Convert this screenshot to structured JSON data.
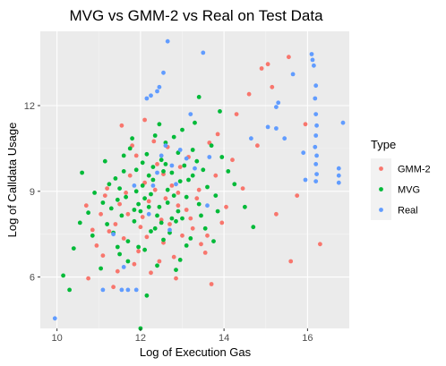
{
  "chart_data": {
    "type": "scatter",
    "title": "MVG vs GMM-2 vs Real on Test Data",
    "xlabel": "Log of Execution Gas",
    "ylabel": "Log of Calldata Usage",
    "xlim": [
      9.6,
      17.0
    ],
    "ylim": [
      4.2,
      14.6
    ],
    "x_ticks": [
      10,
      12,
      14,
      16
    ],
    "y_ticks": [
      6,
      9,
      12
    ],
    "grid": true,
    "background": "#ebebeb",
    "legend": {
      "title": "Type",
      "placement": "right"
    },
    "series": [
      {
        "name": "GMM-2",
        "color": "#f8766d",
        "points": [
          [
            11.55,
            11.3
          ],
          [
            12.32,
            10.75
          ],
          [
            11.7,
            8.2
          ],
          [
            12.9,
            8.95
          ],
          [
            11.25,
            7.6
          ],
          [
            13.35,
            8.75
          ],
          [
            12.1,
            9.3
          ],
          [
            11.05,
            8.2
          ],
          [
            10.85,
            7.65
          ],
          [
            13.65,
            10.7
          ],
          [
            12.55,
            7.2
          ],
          [
            11.95,
            6.9
          ],
          [
            13.25,
            7.7
          ],
          [
            12.75,
            9.2
          ],
          [
            11.45,
            6.2
          ],
          [
            14.05,
            8.45
          ],
          [
            11.9,
            10.25
          ],
          [
            12.5,
            8.0
          ],
          [
            13.0,
            7.45
          ],
          [
            12.2,
            8.65
          ],
          [
            11.15,
            8.85
          ],
          [
            13.8,
            9.55
          ],
          [
            12.65,
            10.55
          ],
          [
            11.6,
            7.35
          ],
          [
            10.95,
            7.1
          ],
          [
            12.45,
            6.55
          ],
          [
            13.55,
            6.85
          ],
          [
            12.85,
            5.95
          ],
          [
            11.35,
            5.65
          ],
          [
            14.6,
            12.4
          ],
          [
            14.3,
            11.7
          ],
          [
            14.8,
            10.6
          ],
          [
            15.25,
            8.2
          ],
          [
            15.75,
            8.85
          ],
          [
            15.95,
            11.35
          ],
          [
            16.3,
            7.15
          ],
          [
            15.55,
            13.7
          ],
          [
            15.05,
            13.45
          ],
          [
            14.9,
            13.3
          ],
          [
            12.1,
            11.5
          ],
          [
            13.7,
            5.75
          ],
          [
            12.95,
            9.85
          ],
          [
            11.75,
            9.55
          ],
          [
            12.4,
            9.95
          ],
          [
            12.0,
            7.75
          ],
          [
            13.1,
            8.35
          ],
          [
            11.85,
            6.45
          ],
          [
            12.7,
            7.85
          ],
          [
            13.4,
            9.05
          ],
          [
            11.5,
            8.55
          ],
          [
            12.25,
            6.15
          ],
          [
            13.15,
            10.2
          ],
          [
            10.7,
            8.5
          ],
          [
            12.6,
            8.75
          ],
          [
            11.2,
            9.1
          ],
          [
            13.95,
            7.9
          ],
          [
            12.05,
            8.1
          ],
          [
            11.65,
            8.95
          ],
          [
            12.8,
            6.7
          ],
          [
            13.45,
            7.15
          ],
          [
            15.15,
            12.65
          ],
          [
            14.2,
            10.1
          ],
          [
            10.75,
            5.95
          ],
          [
            12.35,
            9.05
          ],
          [
            11.1,
            6.75
          ],
          [
            13.85,
            11.0
          ],
          [
            12.15,
            7.4
          ],
          [
            11.8,
            10.6
          ],
          [
            13.2,
            8.05
          ],
          [
            12.55,
            9.6
          ],
          [
            11.4,
            7.85
          ],
          [
            14.45,
            9.1
          ],
          [
            13.6,
            7.45
          ],
          [
            15.6,
            6.55
          ],
          [
            12.9,
            8.5
          ]
        ]
      },
      {
        "name": "MVG",
        "color": "#00ba38",
        "points": [
          [
            11.45,
            8.7
          ],
          [
            12.05,
            9.2
          ],
          [
            12.4,
            8.15
          ],
          [
            11.85,
            7.95
          ],
          [
            12.75,
            9.65
          ],
          [
            13.1,
            8.8
          ],
          [
            11.6,
            9.7
          ],
          [
            12.3,
            9.85
          ],
          [
            12.55,
            7.3
          ],
          [
            11.3,
            8.4
          ],
          [
            10.9,
            8.95
          ],
          [
            11.7,
            7.25
          ],
          [
            12.95,
            9.35
          ],
          [
            13.35,
            10.05
          ],
          [
            12.15,
            10.3
          ],
          [
            11.95,
            8.55
          ],
          [
            12.65,
            8.6
          ],
          [
            11.2,
            7.85
          ],
          [
            10.6,
            9.65
          ],
          [
            10.4,
            7.0
          ],
          [
            10.15,
            6.05
          ],
          [
            10.3,
            5.55
          ],
          [
            12.0,
            4.2
          ],
          [
            11.5,
            6.8
          ],
          [
            12.85,
            6.25
          ],
          [
            13.55,
            7.7
          ],
          [
            13.8,
            8.85
          ],
          [
            14.25,
            9.25
          ],
          [
            14.5,
            8.45
          ],
          [
            13.25,
            10.45
          ],
          [
            12.8,
            10.9
          ],
          [
            12.45,
            11.35
          ],
          [
            13.9,
            11.8
          ],
          [
            13.4,
            12.3
          ],
          [
            13.0,
            11.15
          ],
          [
            11.75,
            10.5
          ],
          [
            12.25,
            8.9
          ],
          [
            12.9,
            8.3
          ],
          [
            11.15,
            10.05
          ],
          [
            11.4,
            9.45
          ],
          [
            12.6,
            9.95
          ],
          [
            13.15,
            9.4
          ],
          [
            11.55,
            8.15
          ],
          [
            12.35,
            7.7
          ],
          [
            10.85,
            7.45
          ],
          [
            12.1,
            6.95
          ],
          [
            12.7,
            7.55
          ],
          [
            13.45,
            8.15
          ],
          [
            11.05,
            6.3
          ],
          [
            13.95,
            10.2
          ],
          [
            12.2,
            9.55
          ],
          [
            11.9,
            9.0
          ],
          [
            12.5,
            10.1
          ],
          [
            13.05,
            9.9
          ],
          [
            11.65,
            8.8
          ],
          [
            12.85,
            7.95
          ],
          [
            13.6,
            9.15
          ],
          [
            12.4,
            6.4
          ],
          [
            11.35,
            7.55
          ],
          [
            12.0,
            8.3
          ],
          [
            10.75,
            8.25
          ],
          [
            13.7,
            10.6
          ],
          [
            11.8,
            10.85
          ],
          [
            12.45,
            8.45
          ],
          [
            13.2,
            7.35
          ],
          [
            14.7,
            7.75
          ],
          [
            12.15,
            5.35
          ],
          [
            11.25,
            9.25
          ],
          [
            12.6,
            10.7
          ],
          [
            13.5,
            9.75
          ],
          [
            11.95,
            7.05
          ],
          [
            12.3,
            9.4
          ],
          [
            13.3,
            11.4
          ],
          [
            12.75,
            8.05
          ],
          [
            11.5,
            9.1
          ],
          [
            10.55,
            7.9
          ],
          [
            12.05,
            10.0
          ],
          [
            13.85,
            8.3
          ],
          [
            12.9,
            10.35
          ],
          [
            11.7,
            6.55
          ],
          [
            12.25,
            7.6
          ],
          [
            12.65,
            9.05
          ],
          [
            13.1,
            7.1
          ],
          [
            11.1,
            8.6
          ],
          [
            11.85,
            8.35
          ],
          [
            12.55,
            9.7
          ],
          [
            13.4,
            8.55
          ],
          [
            12.35,
            10.95
          ],
          [
            13.75,
            7.25
          ],
          [
            14.1,
            9.7
          ],
          [
            12.95,
            6.6
          ],
          [
            11.6,
            10.25
          ],
          [
            12.8,
            8.85
          ],
          [
            12.1,
            8.75
          ],
          [
            11.45,
            7.05
          ],
          [
            13.25,
            9.55
          ],
          [
            12.5,
            7.9
          ],
          [
            11.9,
            9.75
          ],
          [
            13.0,
            8.05
          ],
          [
            12.2,
            8.45
          ]
        ]
      },
      {
        "name": "Real",
        "color": "#619cff",
        "points": [
          [
            12.65,
            14.25
          ],
          [
            12.55,
            13.15
          ],
          [
            13.5,
            13.85
          ],
          [
            12.25,
            12.35
          ],
          [
            12.45,
            12.65
          ],
          [
            12.15,
            12.25
          ],
          [
            12.4,
            12.5
          ],
          [
            12.6,
            10.6
          ],
          [
            13.2,
            11.7
          ],
          [
            13.65,
            10.2
          ],
          [
            14.65,
            10.85
          ],
          [
            15.05,
            11.25
          ],
          [
            15.3,
            12.1
          ],
          [
            15.25,
            11.95
          ],
          [
            15.25,
            11.2
          ],
          [
            15.65,
            13.1
          ],
          [
            15.45,
            10.85
          ],
          [
            15.9,
            10.35
          ],
          [
            15.95,
            9.4
          ],
          [
            16.1,
            13.8
          ],
          [
            16.12,
            13.6
          ],
          [
            16.15,
            13.4
          ],
          [
            16.2,
            12.7
          ],
          [
            16.18,
            12.25
          ],
          [
            16.2,
            11.7
          ],
          [
            16.22,
            11.3
          ],
          [
            16.2,
            10.95
          ],
          [
            16.18,
            10.55
          ],
          [
            16.22,
            10.25
          ],
          [
            16.2,
            9.95
          ],
          [
            16.22,
            9.6
          ],
          [
            16.2,
            9.35
          ],
          [
            16.75,
            9.8
          ],
          [
            16.75,
            9.55
          ],
          [
            16.75,
            9.3
          ],
          [
            16.85,
            11.4
          ],
          [
            12.3,
            9.2
          ],
          [
            12.75,
            9.9
          ],
          [
            13.1,
            10.15
          ],
          [
            12.85,
            9.25
          ],
          [
            12.4,
            9.65
          ],
          [
            12.95,
            10.45
          ],
          [
            11.55,
            5.55
          ],
          [
            11.7,
            5.55
          ],
          [
            11.9,
            5.55
          ],
          [
            9.95,
            4.55
          ],
          [
            11.6,
            6.35
          ],
          [
            11.35,
            7.5
          ],
          [
            12.2,
            8.2
          ],
          [
            12.7,
            7.65
          ],
          [
            11.1,
            5.55
          ],
          [
            13.3,
            9.8
          ],
          [
            11.85,
            9.2
          ],
          [
            12.5,
            10.25
          ],
          [
            13.6,
            8.5
          ]
        ]
      }
    ]
  }
}
